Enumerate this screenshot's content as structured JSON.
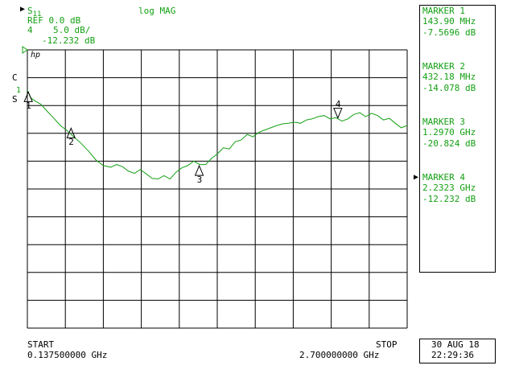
{
  "header": {
    "param": "S",
    "param_sub": "11",
    "ref": "REF 0.0 dB",
    "scale_num": "4",
    "scale": "5.0 dB/",
    "marker_value": "-12.232 dB",
    "format": "log MAG",
    "logo": "hp"
  },
  "left_labels": {
    "c": "C",
    "s": "S",
    "ref_marker": "1"
  },
  "markers": [
    {
      "label": "MARKER 1",
      "freq": "143.90 MHz",
      "value": "-7.5696 dB",
      "num": "1",
      "x_ghz": 0.1439,
      "y_db": -7.5696
    },
    {
      "label": "MARKER 2",
      "freq": "432.18 MHz",
      "value": "-14.078 dB",
      "num": "2",
      "x_ghz": 0.43218,
      "y_db": -14.078
    },
    {
      "label": "MARKER 3",
      "freq": "1.2970 GHz",
      "value": "-20.824 dB",
      "num": "3",
      "x_ghz": 1.297,
      "y_db": -20.824
    },
    {
      "label": "MARKER 4",
      "freq": "2.2323 GHz",
      "value": "-12.232 dB",
      "num": "4",
      "x_ghz": 2.2323,
      "y_db": -12.232
    }
  ],
  "active_marker_arrow": "▶",
  "footer": {
    "start_label": "START",
    "start_value": "0.137500000 GHz",
    "stop_label": "STOP",
    "stop_value": "2.700000000 GHz",
    "date": "30 AUG 18",
    "time": "22:29:36"
  },
  "colors": {
    "trace": "#14a014",
    "grid": "#000000",
    "text_green": "#14a014"
  },
  "chart_data": {
    "type": "line",
    "x_unit": "GHz",
    "y_unit": "dB",
    "xlim": [
      0.1375,
      2.7
    ],
    "ylim": [
      -50,
      0
    ],
    "grid": true,
    "series": [
      {
        "x": [
          0.1375,
          0.16,
          0.19,
          0.23,
          0.27,
          0.32,
          0.36,
          0.4,
          0.45,
          0.5,
          0.55,
          0.6,
          0.65,
          0.7,
          0.74,
          0.78,
          0.82,
          0.86,
          0.9,
          0.94,
          0.98,
          1.02,
          1.06,
          1.1,
          1.14,
          1.18,
          1.22,
          1.26,
          1.3,
          1.34,
          1.38,
          1.42,
          1.46,
          1.5,
          1.54,
          1.58,
          1.62,
          1.66,
          1.7,
          1.74,
          1.78,
          1.82,
          1.86,
          1.9,
          1.94,
          1.98,
          2.02,
          2.06,
          2.1,
          2.14,
          2.18,
          2.22,
          2.26,
          2.3,
          2.34,
          2.38,
          2.42,
          2.46,
          2.5,
          2.54,
          2.58,
          2.62,
          2.66,
          2.7
        ],
        "y": [
          -7.2,
          -8.6,
          -9.2,
          -9.8,
          -11.0,
          -12.4,
          -13.6,
          -14.4,
          -15.6,
          -16.8,
          -18.2,
          -19.8,
          -20.8,
          -21.1,
          -20.6,
          -21.0,
          -21.8,
          -22.2,
          -21.5,
          -22.3,
          -23.1,
          -23.2,
          -22.6,
          -23.2,
          -22.0,
          -21.2,
          -20.8,
          -20.0,
          -20.6,
          -20.6,
          -19.5,
          -18.7,
          -17.6,
          -17.8,
          -16.5,
          -16.2,
          -15.2,
          -15.6,
          -14.8,
          -14.4,
          -14.0,
          -13.6,
          -13.3,
          -13.2,
          -13.0,
          -13.2,
          -12.6,
          -12.4,
          -12.0,
          -11.8,
          -12.4,
          -12.2,
          -12.8,
          -12.4,
          -11.6,
          -11.3,
          -12.0,
          -11.4,
          -11.8,
          -12.6,
          -12.3,
          -13.2,
          -14.0,
          -13.6
        ]
      }
    ]
  }
}
